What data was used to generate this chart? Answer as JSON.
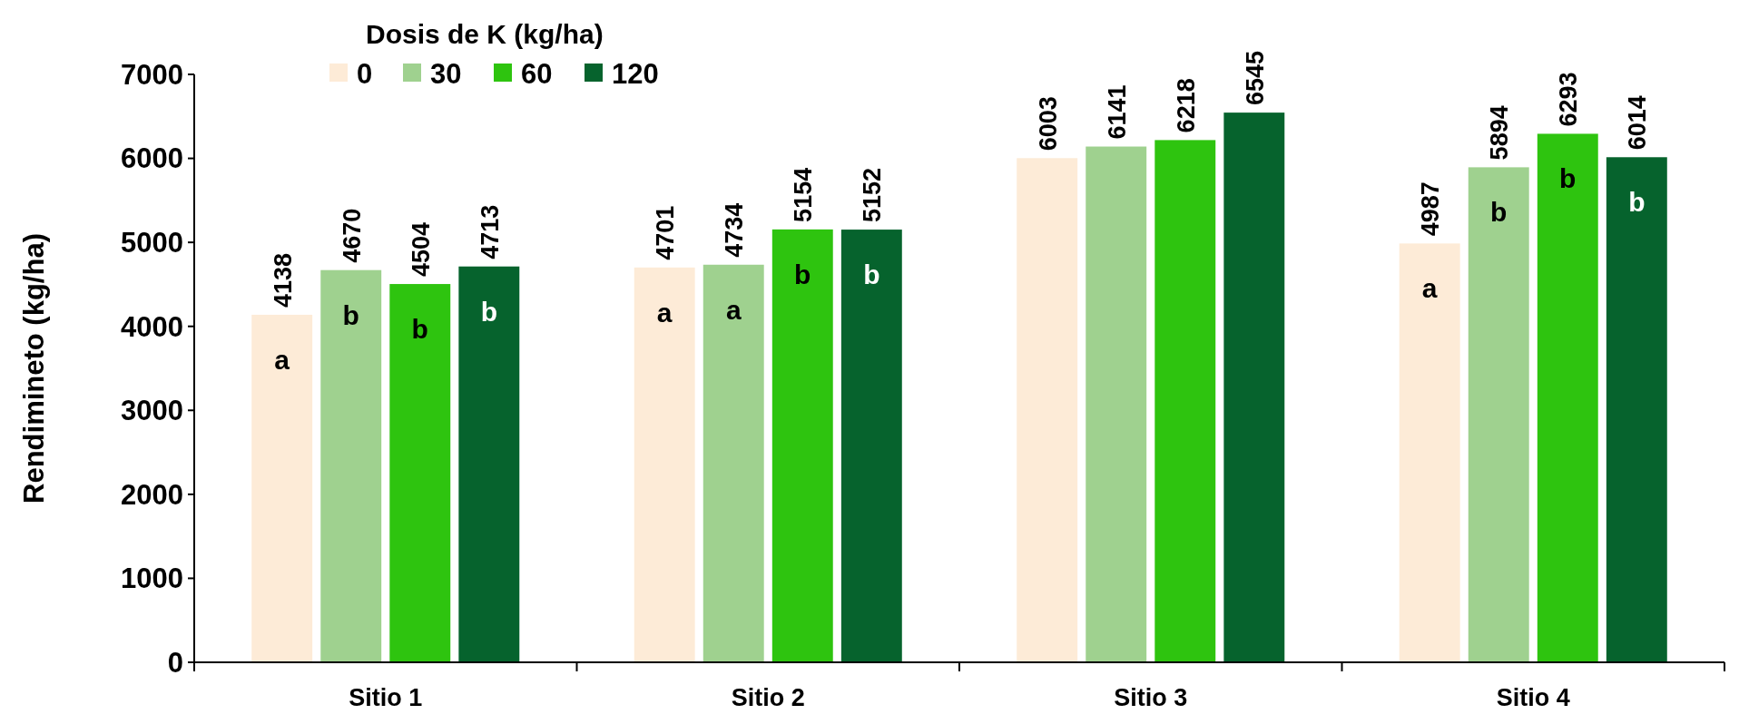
{
  "chart_data": {
    "type": "bar",
    "ylabel": "Rendimineto (kg/ha)",
    "legend_title": "Dosis de K (kg/ha)",
    "legend": "top",
    "categories": [
      "Sitio 1",
      "Sitio 2",
      "Sitio 3",
      "Sitio 4"
    ],
    "series": [
      {
        "name": "0",
        "color": "#fdebd7",
        "values": [
          4138,
          4701,
          6003,
          4987
        ]
      },
      {
        "name": "30",
        "color": "#9fd18f",
        "values": [
          4670,
          4734,
          6141,
          5894
        ]
      },
      {
        "name": "60",
        "color": "#2ec40f",
        "values": [
          4504,
          5154,
          6218,
          6293
        ]
      },
      {
        "name": "120",
        "color": "#06632d",
        "values": [
          4713,
          5152,
          6545,
          6014
        ]
      }
    ],
    "ylim": [
      0,
      7000
    ],
    "yticks": [
      0,
      1000,
      2000,
      3000,
      4000,
      5000,
      6000,
      7000
    ],
    "data_labels": true,
    "grid": false,
    "annotations": [
      "a",
      "b",
      "b",
      "b",
      "a",
      "a",
      "b",
      "b",
      null,
      null,
      null,
      null,
      "a",
      "b",
      "b",
      "b"
    ]
  }
}
